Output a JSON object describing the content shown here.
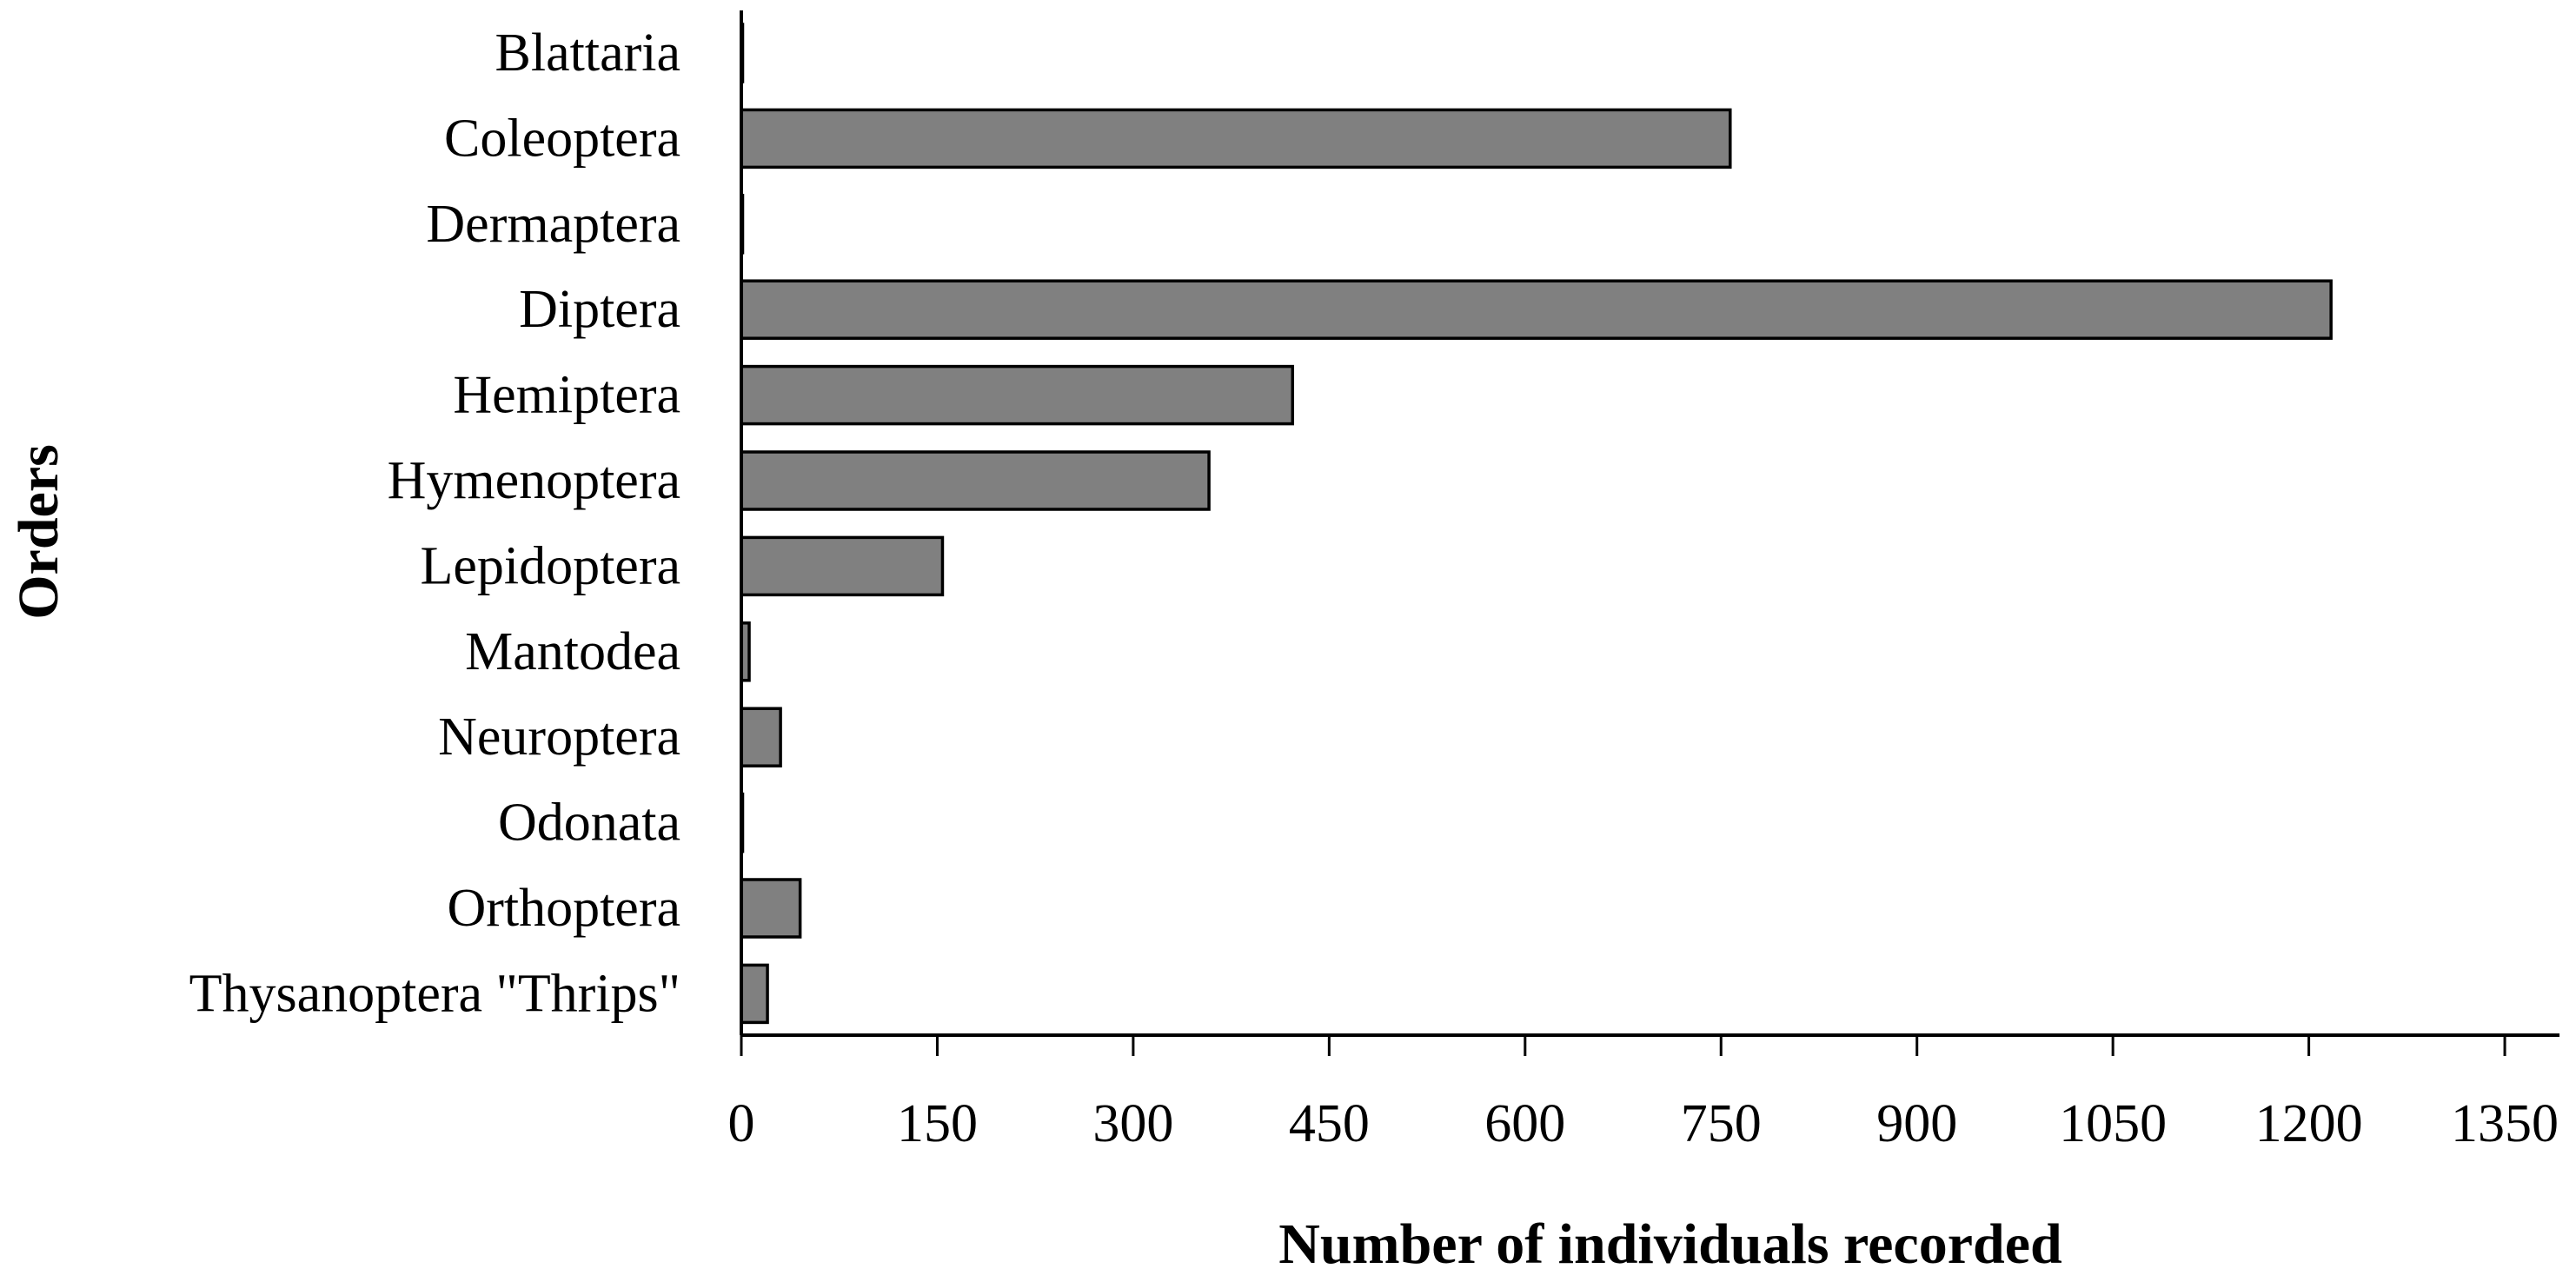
{
  "chart_data": {
    "type": "bar",
    "orientation": "horizontal",
    "xlabel": "Number of individuals recorded",
    "ylabel": "Orders",
    "xlim": [
      0,
      1400
    ],
    "xticks": [
      0,
      150,
      300,
      450,
      600,
      750,
      900,
      1050,
      1200,
      1350
    ],
    "grid": false,
    "legend": "none",
    "bar_color": "#808080",
    "bar_edge_color": "#000000",
    "categories": [
      "Blattaria",
      "Coleoptera",
      "Dermaptera",
      "Diptera",
      "Hemiptera",
      "Hymenoptera",
      "Lepidoptera",
      "Mantodea",
      "Neuroptera",
      "Odonata",
      "Orthoptera",
      "Thysanoptera \"Thrips\""
    ],
    "values": [
      1,
      757,
      1,
      1217,
      422,
      358,
      154,
      6,
      30,
      1,
      45,
      20
    ]
  }
}
